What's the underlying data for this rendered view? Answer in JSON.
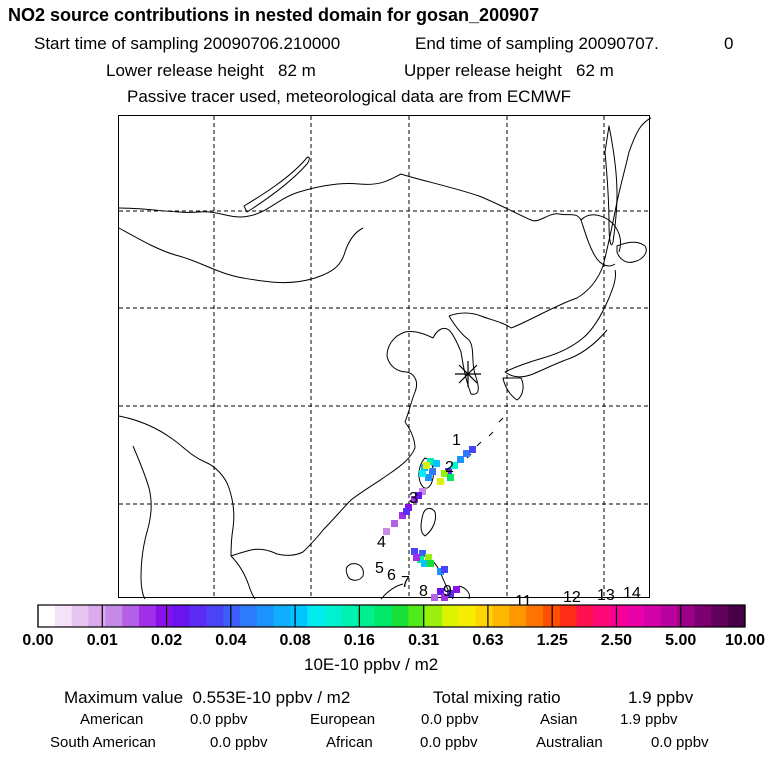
{
  "header": {
    "title": "NO2 source contributions in nested domain for gosan_200907",
    "start_label": "Start time of sampling 20090706.210000",
    "end_label": "End time of sampling 20090707.",
    "end_suffix": "0",
    "lower_height": "Lower release height   82 m",
    "upper_height": "Upper release height   62 m",
    "tracer_note": "Passive tracer used, meteorological data are from ECMWF"
  },
  "map": {
    "receptor_marker": "asterisk",
    "number_labels": [
      "1",
      "2",
      "3",
      "4",
      "5",
      "6",
      "7",
      "8",
      "9",
      "11",
      "12",
      "13",
      "14"
    ]
  },
  "chart_data": {
    "type": "heatmap",
    "title": "NO2 source contributions in nested domain for gosan_200907",
    "colorbar": {
      "tick_labels": [
        "0.00",
        "0.01",
        "0.02",
        "0.04",
        "0.08",
        "0.16",
        "0.31",
        "0.63",
        "1.25",
        "2.50",
        "5.00",
        "10.00"
      ],
      "unit_label": "10E-10 ppbv / m2",
      "colors": [
        "#ffffff",
        "#f4e2f8",
        "#e8c6f2",
        "#dca8ee",
        "#c58ae8",
        "#b35fe6",
        "#a030e8",
        "#8a10ea",
        "#6a14f0",
        "#5a2cf4",
        "#4a44f8",
        "#3c5efa",
        "#2e7afc",
        "#1c94ff",
        "#10aeff",
        "#00c4ff",
        "#00ecf0",
        "#00f2d2",
        "#00f2b0",
        "#00f090",
        "#00e868",
        "#18e038",
        "#50ea18",
        "#9af00c",
        "#dcf400",
        "#f8ec00",
        "#ffd400",
        "#ffb800",
        "#ff9800",
        "#ff7400",
        "#ff5000",
        "#ff2c18",
        "#ff1050",
        "#ff0878",
        "#f80098",
        "#e800a8",
        "#d400a8",
        "#b8009c",
        "#9a0088",
        "#7c0070",
        "#600058",
        "#480044"
      ]
    }
  },
  "summary": {
    "max_label": "Maximum value  0.553E-10 ppbv / m2",
    "total_label": "Total mixing ratio",
    "total_value": "1.9 ppbv"
  },
  "regions": [
    {
      "name": "American",
      "value": "0.0 ppbv"
    },
    {
      "name": "European",
      "value": "0.0 ppbv"
    },
    {
      "name": "Asian",
      "value": "1.9 ppbv"
    },
    {
      "name": "South American",
      "value": "0.0 ppbv"
    },
    {
      "name": "African",
      "value": "0.0 ppbv"
    },
    {
      "name": "Australian",
      "value": "0.0 ppbv"
    }
  ]
}
